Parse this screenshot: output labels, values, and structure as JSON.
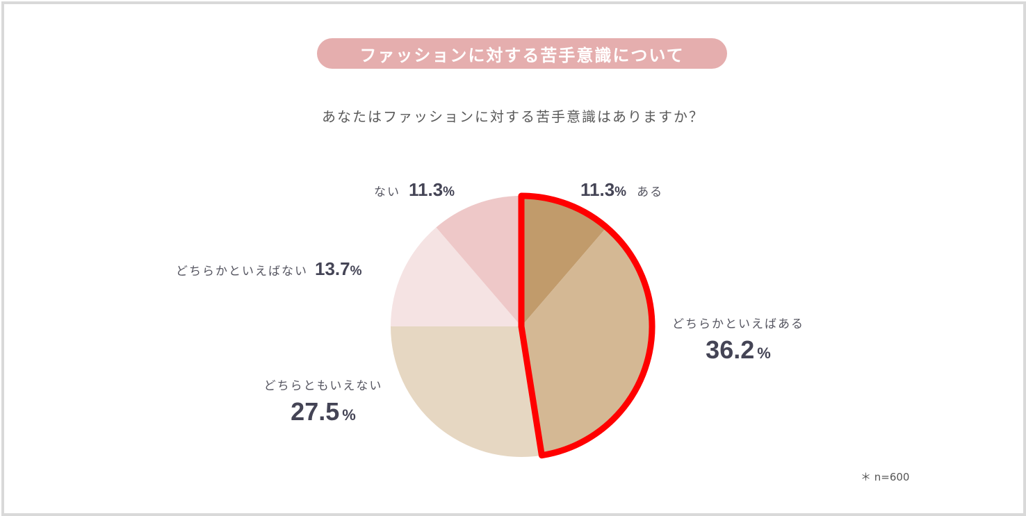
{
  "header": {
    "title": "ファッションに対する苦手意識について",
    "question": "あなたはファッションに対する苦手意識はありますか？"
  },
  "chart_data": {
    "type": "pie",
    "title": "ファッションに対する苦手意識について",
    "subtitle": "あなたはファッションに対する苦手意識はありますか？",
    "unit": "%",
    "start_angle": "12 o'clock",
    "direction": "clockwise",
    "slices": [
      {
        "label": "ある",
        "value": 11.3,
        "value_text": "11.3",
        "color": "#c19b6b"
      },
      {
        "label": "どちらかといえばある",
        "value": 36.2,
        "value_text": "36.2",
        "color": "#d4b894"
      },
      {
        "label": "どちらともいえない",
        "value": 27.5,
        "value_text": "27.5",
        "color": "#e6d7c2"
      },
      {
        "label": "どちらかといえばない",
        "value": 13.7,
        "value_text": "13.7",
        "color": "#f5e3e3"
      },
      {
        "label": "ない",
        "value": 11.3,
        "value_text": "11.3",
        "color": "#eec8c8"
      }
    ],
    "highlight": {
      "slices": [
        "ある",
        "どちらかといえばある"
      ],
      "color": "#ff0000"
    },
    "note": "＊ n=600"
  }
}
